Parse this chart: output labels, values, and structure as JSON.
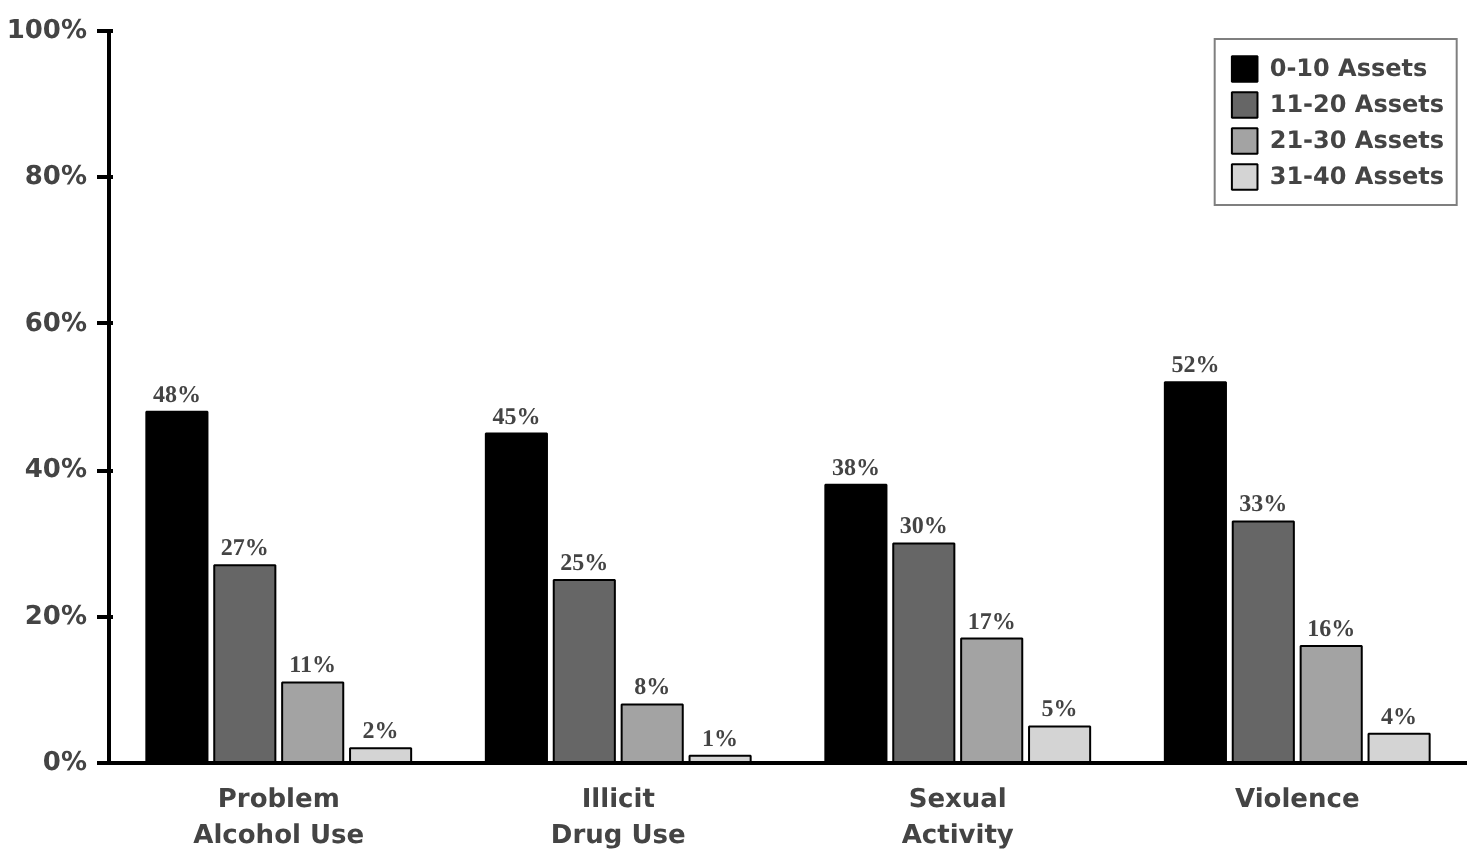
{
  "chart_data": {
    "type": "bar",
    "categories": [
      "Problem\nAlcohol Use",
      "Illicit\nDrug Use",
      "Sexual\nActivity",
      "Violence"
    ],
    "series": [
      {
        "name": "0-10 Assets",
        "color": "#000000",
        "values": [
          48,
          45,
          38,
          52
        ],
        "value_labels": [
          "48%",
          "45%",
          "38%",
          "52%"
        ]
      },
      {
        "name": "11-20 Assets",
        "color": "#666666",
        "values": [
          27,
          25,
          30,
          33
        ],
        "value_labels": [
          "27%",
          "25%",
          "30%",
          "33%"
        ]
      },
      {
        "name": "21-30 Assets",
        "color": "#a3a3a3",
        "values": [
          11,
          8,
          17,
          16
        ],
        "value_labels": [
          "11%",
          "8%",
          "17%",
          "16%"
        ]
      },
      {
        "name": "31-40 Assets",
        "color": "#d4d4d4",
        "values": [
          2,
          1,
          5,
          4
        ],
        "value_labels": [
          "2%",
          "1%",
          "5%",
          "4%"
        ]
      }
    ],
    "ylim": [
      0,
      100
    ],
    "yticks": [
      {
        "value": 0,
        "label": "0%"
      },
      {
        "value": 20,
        "label": "20%"
      },
      {
        "value": 40,
        "label": "40%"
      },
      {
        "value": 60,
        "label": "60%"
      },
      {
        "value": 80,
        "label": "80%"
      },
      {
        "value": 100,
        "label": "100%"
      }
    ],
    "grid": false,
    "legend": "top right"
  }
}
